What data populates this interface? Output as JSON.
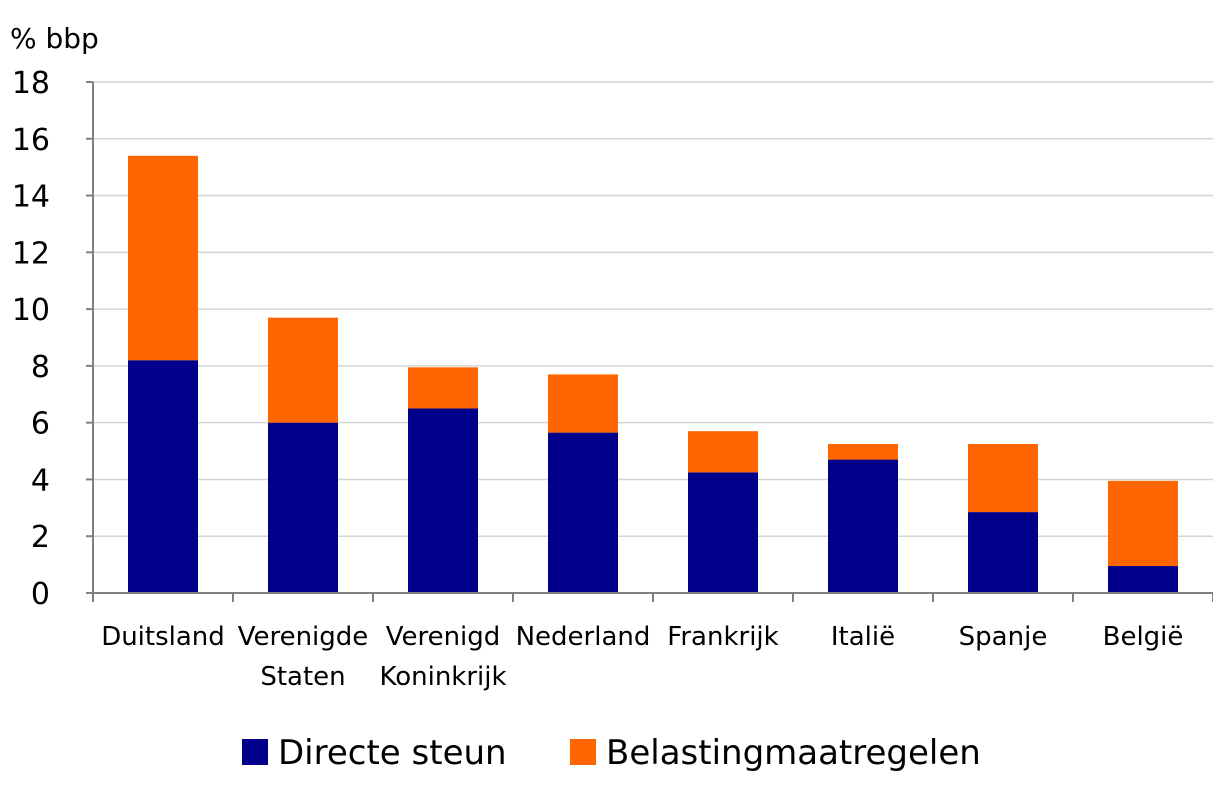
{
  "chart_data": {
    "type": "bar",
    "stacked": true,
    "ylabel": "% bbp",
    "xlabel": "",
    "title": "",
    "ylim": [
      0,
      18
    ],
    "yticks": [
      0,
      2,
      4,
      6,
      8,
      10,
      12,
      14,
      16,
      18
    ],
    "grid": true,
    "legend_position": "bottom",
    "categories": [
      [
        "Duitsland"
      ],
      [
        "Verenigde",
        "Staten"
      ],
      [
        "Verenigd",
        "Koninkrijk"
      ],
      [
        "Nederland"
      ],
      [
        "Frankrijk"
      ],
      [
        "Italië"
      ],
      [
        "Spanje"
      ],
      [
        "België"
      ]
    ],
    "series": [
      {
        "name": "Directe steun",
        "color": "#00008b",
        "values": [
          8.2,
          6.0,
          6.5,
          5.65,
          4.25,
          4.7,
          2.85,
          0.95
        ]
      },
      {
        "name": "Belastingmaatregelen",
        "color": "#ff6600",
        "values": [
          7.2,
          3.7,
          1.45,
          2.05,
          1.45,
          0.55,
          2.4,
          3.0
        ]
      }
    ]
  }
}
